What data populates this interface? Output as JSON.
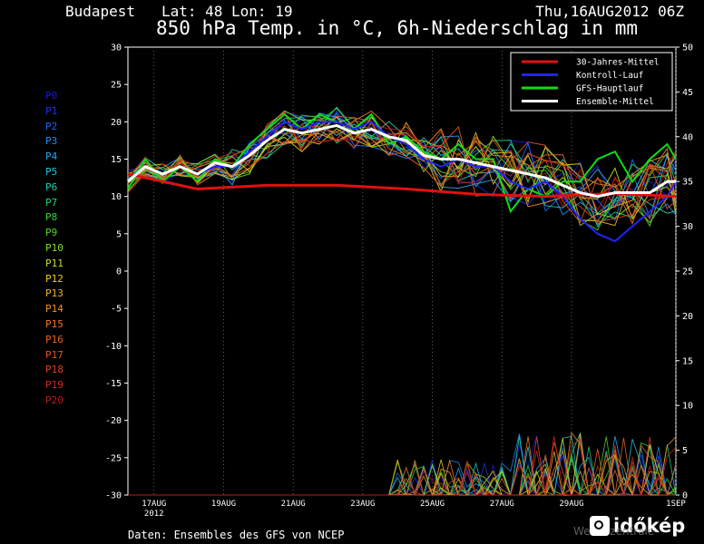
{
  "header": {
    "location": "Budapest   Lat: 48 Lon: 19",
    "datetime": "Thu,16AUG2012 06Z",
    "title": "850 hPa Temp. in °C, 6h-Niederschlag in mm"
  },
  "footer": {
    "source": "Daten: Ensembles des GFS von NCEP"
  },
  "logo": {
    "text": "időkép",
    "watermark": "Wetterzentrale"
  },
  "members": [
    {
      "label": "P0",
      "color": "#1b1bd4"
    },
    {
      "label": "P1",
      "color": "#2233e8"
    },
    {
      "label": "P2",
      "color": "#1a66f0"
    },
    {
      "label": "P3",
      "color": "#1f8ff2"
    },
    {
      "label": "P4",
      "color": "#22aaf0"
    },
    {
      "label": "P5",
      "color": "#22c6d8"
    },
    {
      "label": "P6",
      "color": "#22d0b0"
    },
    {
      "label": "P7",
      "color": "#22d27a"
    },
    {
      "label": "P8",
      "color": "#33d433"
    },
    {
      "label": "P9",
      "color": "#55d422"
    },
    {
      "label": "P10",
      "color": "#88dd22"
    },
    {
      "label": "P11",
      "color": "#c8dd22"
    },
    {
      "label": "P12",
      "color": "#e8cc22"
    },
    {
      "label": "P13",
      "color": "#f0b022"
    },
    {
      "label": "P14",
      "color": "#f09222"
    },
    {
      "label": "P15",
      "color": "#ee7a22"
    },
    {
      "label": "P16",
      "color": "#e86622"
    },
    {
      "label": "P17",
      "color": "#e05522"
    },
    {
      "label": "P18",
      "color": "#d84022"
    },
    {
      "label": "P19",
      "color": "#cc2a22"
    },
    {
      "label": "P20",
      "color": "#b81a1a"
    }
  ],
  "chart_data": {
    "type": "line",
    "title": "850 hPa Temp. in °C, 6h-Niederschlag in mm",
    "ylabel_left": "°C",
    "ylabel_right": "mm",
    "ylim_left": [
      -30,
      30
    ],
    "ylim_right": [
      0,
      50
    ],
    "y_ticks_left": [
      30,
      25,
      20,
      15,
      10,
      5,
      0,
      -5,
      -10,
      -15,
      -20,
      -25,
      -30
    ],
    "y_ticks_right": [
      50,
      45,
      40,
      35,
      30,
      25,
      20,
      15,
      10,
      5,
      0
    ],
    "x_ticks": [
      {
        "label": "17AUG",
        "sub": "2012",
        "day": 0.75
      },
      {
        "label": "19AUG",
        "sub": "",
        "day": 2.75
      },
      {
        "label": "21AUG",
        "sub": "",
        "day": 4.75
      },
      {
        "label": "23AUG",
        "sub": "",
        "day": 6.75
      },
      {
        "label": "25AUG",
        "sub": "",
        "day": 8.75
      },
      {
        "label": "27AUG",
        "sub": "",
        "day": 10.75
      },
      {
        "label": "29AUG",
        "sub": "",
        "day": 12.75
      },
      {
        "label": "1SEP",
        "sub": "",
        "day": 15.75
      }
    ],
    "x_range_days": [
      0,
      15.75
    ],
    "grid": true,
    "legend": [
      {
        "label": "30-Jahres-Mittel",
        "color": "#e01010"
      },
      {
        "label": "Kontroll-Lauf",
        "color": "#2222ff"
      },
      {
        "label": "GFS-Hauptlauf",
        "color": "#11dd11"
      },
      {
        "label": "Ensemble-Mittel",
        "color": "#ffffff"
      }
    ],
    "climatology": {
      "x": [
        0,
        2,
        4,
        6,
        8,
        10,
        12,
        14,
        15.75
      ],
      "y": [
        13,
        11,
        11.5,
        11.5,
        11,
        10.3,
        10,
        10.4,
        10
      ]
    },
    "ensemble_mean": {
      "x": [
        0,
        0.5,
        1,
        1.5,
        2,
        2.5,
        3,
        3.5,
        4,
        4.5,
        5,
        5.5,
        6,
        6.5,
        7,
        7.5,
        8,
        8.5,
        9,
        9.5,
        10,
        10.5,
        11,
        11.5,
        12,
        12.5,
        13,
        13.5,
        14,
        14.5,
        15,
        15.5,
        15.75
      ],
      "y": [
        12,
        14,
        13,
        14,
        13,
        14.5,
        14,
        15.5,
        17.5,
        19,
        18.5,
        19,
        19.5,
        18.5,
        19,
        18,
        17.5,
        15.5,
        15,
        15,
        14.5,
        14,
        13.5,
        13,
        12.5,
        11.5,
        10.5,
        10,
        10.5,
        10.5,
        10.5,
        12,
        12
      ]
    },
    "control_run": {
      "x": [
        0,
        0.5,
        1,
        1.5,
        2,
        2.5,
        3,
        3.5,
        4,
        4.5,
        5,
        5.5,
        6,
        6.5,
        7,
        7.5,
        8,
        8.5,
        9,
        9.5,
        10,
        10.5,
        11,
        11.5,
        12,
        12.5,
        13,
        13.5,
        14,
        14.5,
        15,
        15.5,
        15.75
      ],
      "y": [
        12,
        14,
        13,
        14,
        13,
        14,
        14,
        16,
        18,
        20,
        19,
        20,
        20,
        19,
        20,
        18,
        17,
        15,
        14,
        15,
        14,
        14,
        12,
        11,
        12,
        10,
        7,
        5,
        4,
        6,
        8,
        10,
        12
      ]
    },
    "gfs_run": {
      "x": [
        0,
        0.5,
        1,
        1.5,
        2,
        2.5,
        3,
        3.5,
        4,
        4.5,
        5,
        5.5,
        6,
        6.5,
        7,
        7.5,
        8,
        8.5,
        9,
        9.5,
        10,
        10.5,
        11,
        11.5,
        12,
        12.5,
        13,
        13.5,
        14,
        14.5,
        15,
        15.5,
        15.75
      ],
      "y": [
        11,
        15,
        12,
        14,
        12,
        15,
        14,
        17,
        19,
        21,
        19,
        21,
        20,
        19,
        21,
        17,
        18,
        16,
        15,
        17,
        15,
        15,
        8,
        11,
        10,
        12,
        12,
        15,
        16,
        12,
        15,
        17,
        15
      ]
    }
  }
}
